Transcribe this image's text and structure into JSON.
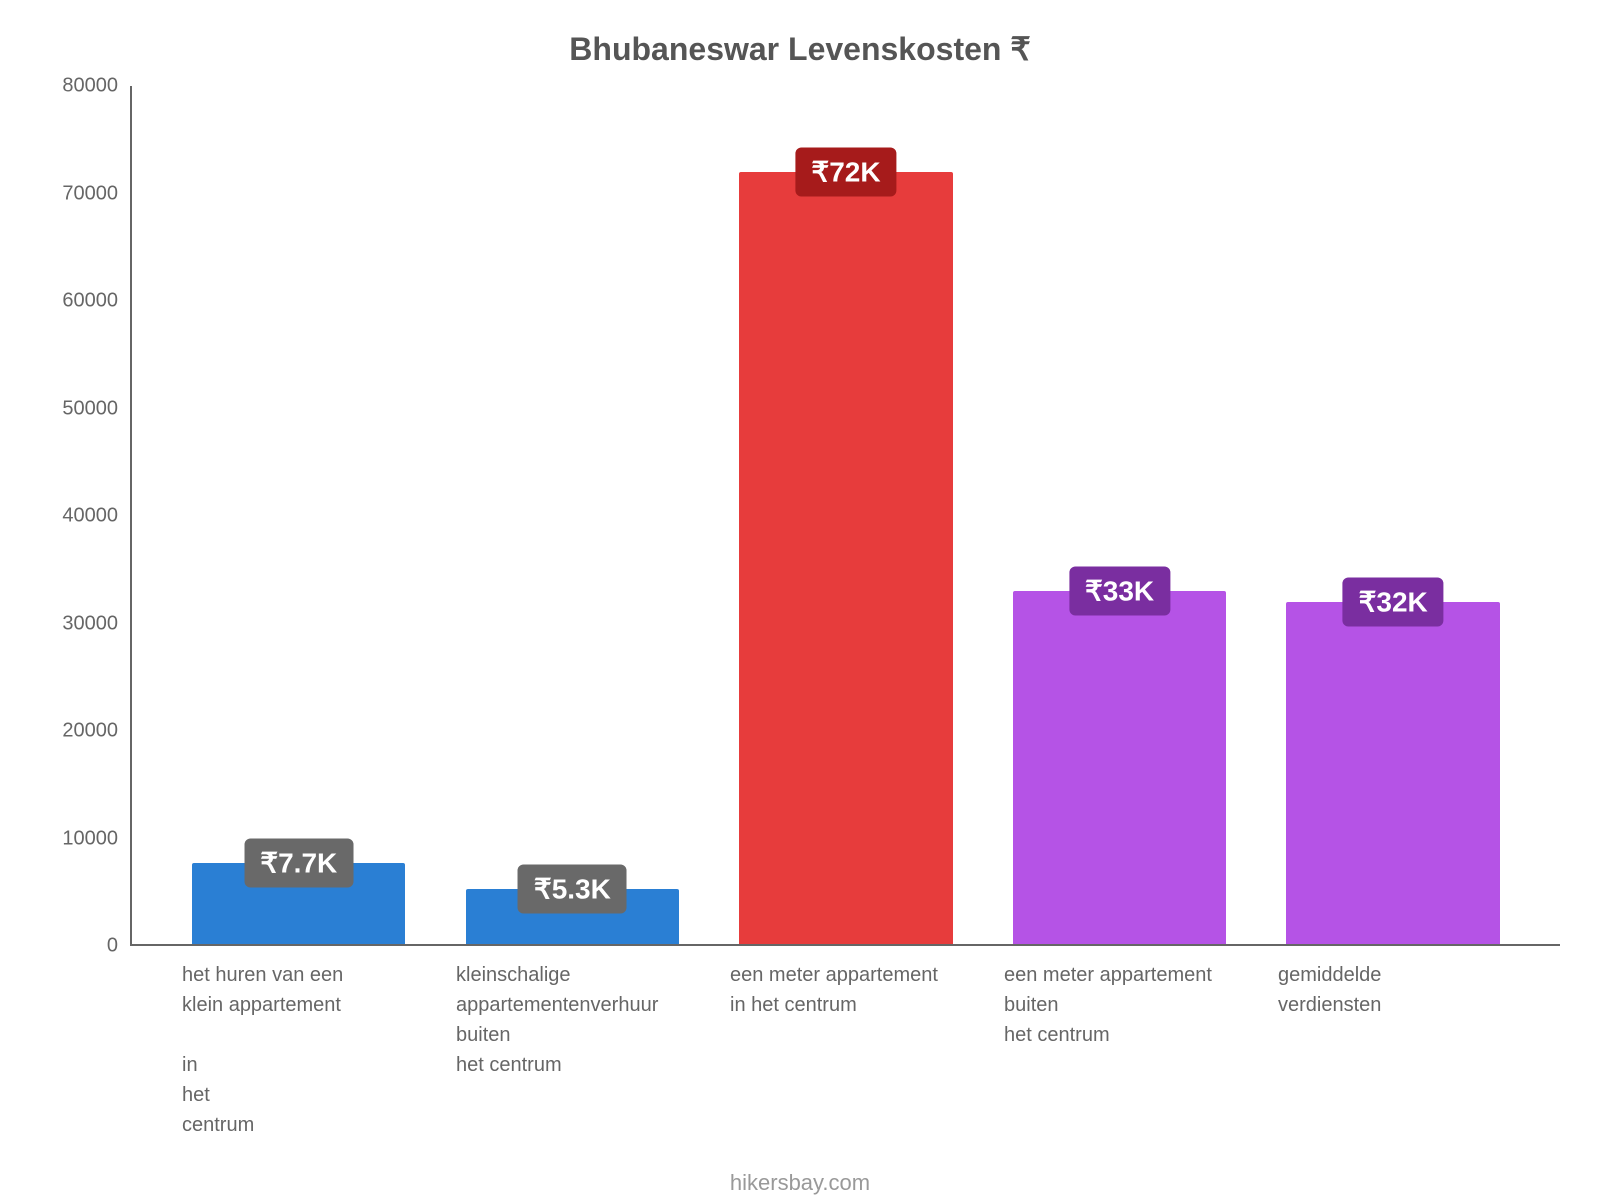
{
  "chart": {
    "type": "bar",
    "title": "Bhubaneswar Levenskosten ₹",
    "title_fontsize": 32,
    "title_color": "#555555",
    "background_color": "#ffffff",
    "axis_color": "#666666",
    "label_color": "#666666",
    "label_fontsize": 20,
    "badge_fontsize": 28,
    "ylim_min": 0,
    "ylim_max": 80000,
    "ytick_step": 10000,
    "yticks": [
      "0",
      "10000",
      "20000",
      "30000",
      "40000",
      "50000",
      "60000",
      "70000",
      "80000"
    ],
    "bar_width_pct": 78,
    "bars": [
      {
        "category": "het huren van een\nklein appartement\n\nin\nhet\ncentrum",
        "value": 7700,
        "value_label": "₹7.7K",
        "bar_color": "#2a7fd4",
        "badge_color": "#696969"
      },
      {
        "category": "kleinschalige\nappartementenverhuur\nbuiten\nhet centrum",
        "value": 5300,
        "value_label": "₹5.3K",
        "bar_color": "#2a7fd4",
        "badge_color": "#696969"
      },
      {
        "category": "een meter appartement\nin het centrum",
        "value": 72000,
        "value_label": "₹72K",
        "bar_color": "#e73c3c",
        "badge_color": "#a61b1b"
      },
      {
        "category": "een meter appartement\nbuiten\nhet centrum",
        "value": 33000,
        "value_label": "₹33K",
        "bar_color": "#b553e6",
        "badge_color": "#7a2ea0"
      },
      {
        "category": "gemiddelde\nverdiensten",
        "value": 32000,
        "value_label": "₹32K",
        "bar_color": "#b553e6",
        "badge_color": "#7a2ea0"
      }
    ],
    "footer": "hikersbay.com",
    "footer_color": "#999999",
    "footer_fontsize": 22
  }
}
